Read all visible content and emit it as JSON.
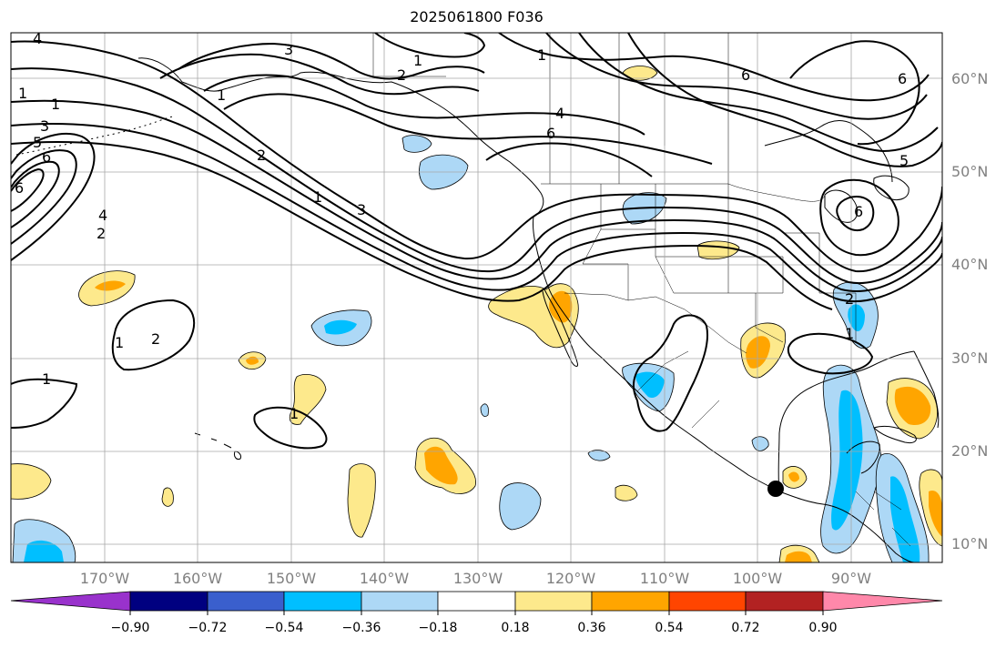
{
  "title": "2025061800 F036",
  "lat_labels": [
    "60°N",
    "50°N",
    "40°N",
    "30°N",
    "20°N",
    "10°N"
  ],
  "lon_labels": [
    "170°W",
    "160°W",
    "150°W",
    "140°W",
    "130°W",
    "120°W",
    "110°W",
    "100°W",
    "90°W"
  ],
  "colorbar": {
    "ticks": [
      "−0.90",
      "−0.72",
      "−0.54",
      "−0.36",
      "−0.18",
      "0.18",
      "0.36",
      "0.54",
      "0.72",
      "0.90"
    ],
    "colors": [
      "#9932cc",
      "#000080",
      "#3a5fcd",
      "#00bfff",
      "#add8f6",
      "#ffffff",
      "#fde98c",
      "#ffa500",
      "#ff4500",
      "#b22222",
      "#ff88aa"
    ]
  },
  "contour_labels": [
    "4",
    "3",
    "2",
    "1",
    "1",
    "3",
    "5",
    "6",
    "6",
    "4",
    "2",
    "2",
    "1",
    "3",
    "1",
    "6",
    "4",
    "6",
    "5",
    "6",
    "6",
    "2",
    "1",
    "1",
    "2",
    "1",
    "1",
    "1",
    "1"
  ],
  "colors": {
    "orange_fill": "#ffa500",
    "yellow_fill": "#fde98c",
    "light_blue_fill": "#add8f6",
    "blue_fill": "#00bfff",
    "grid": "#a8a8a8",
    "marker": "#000000"
  }
}
